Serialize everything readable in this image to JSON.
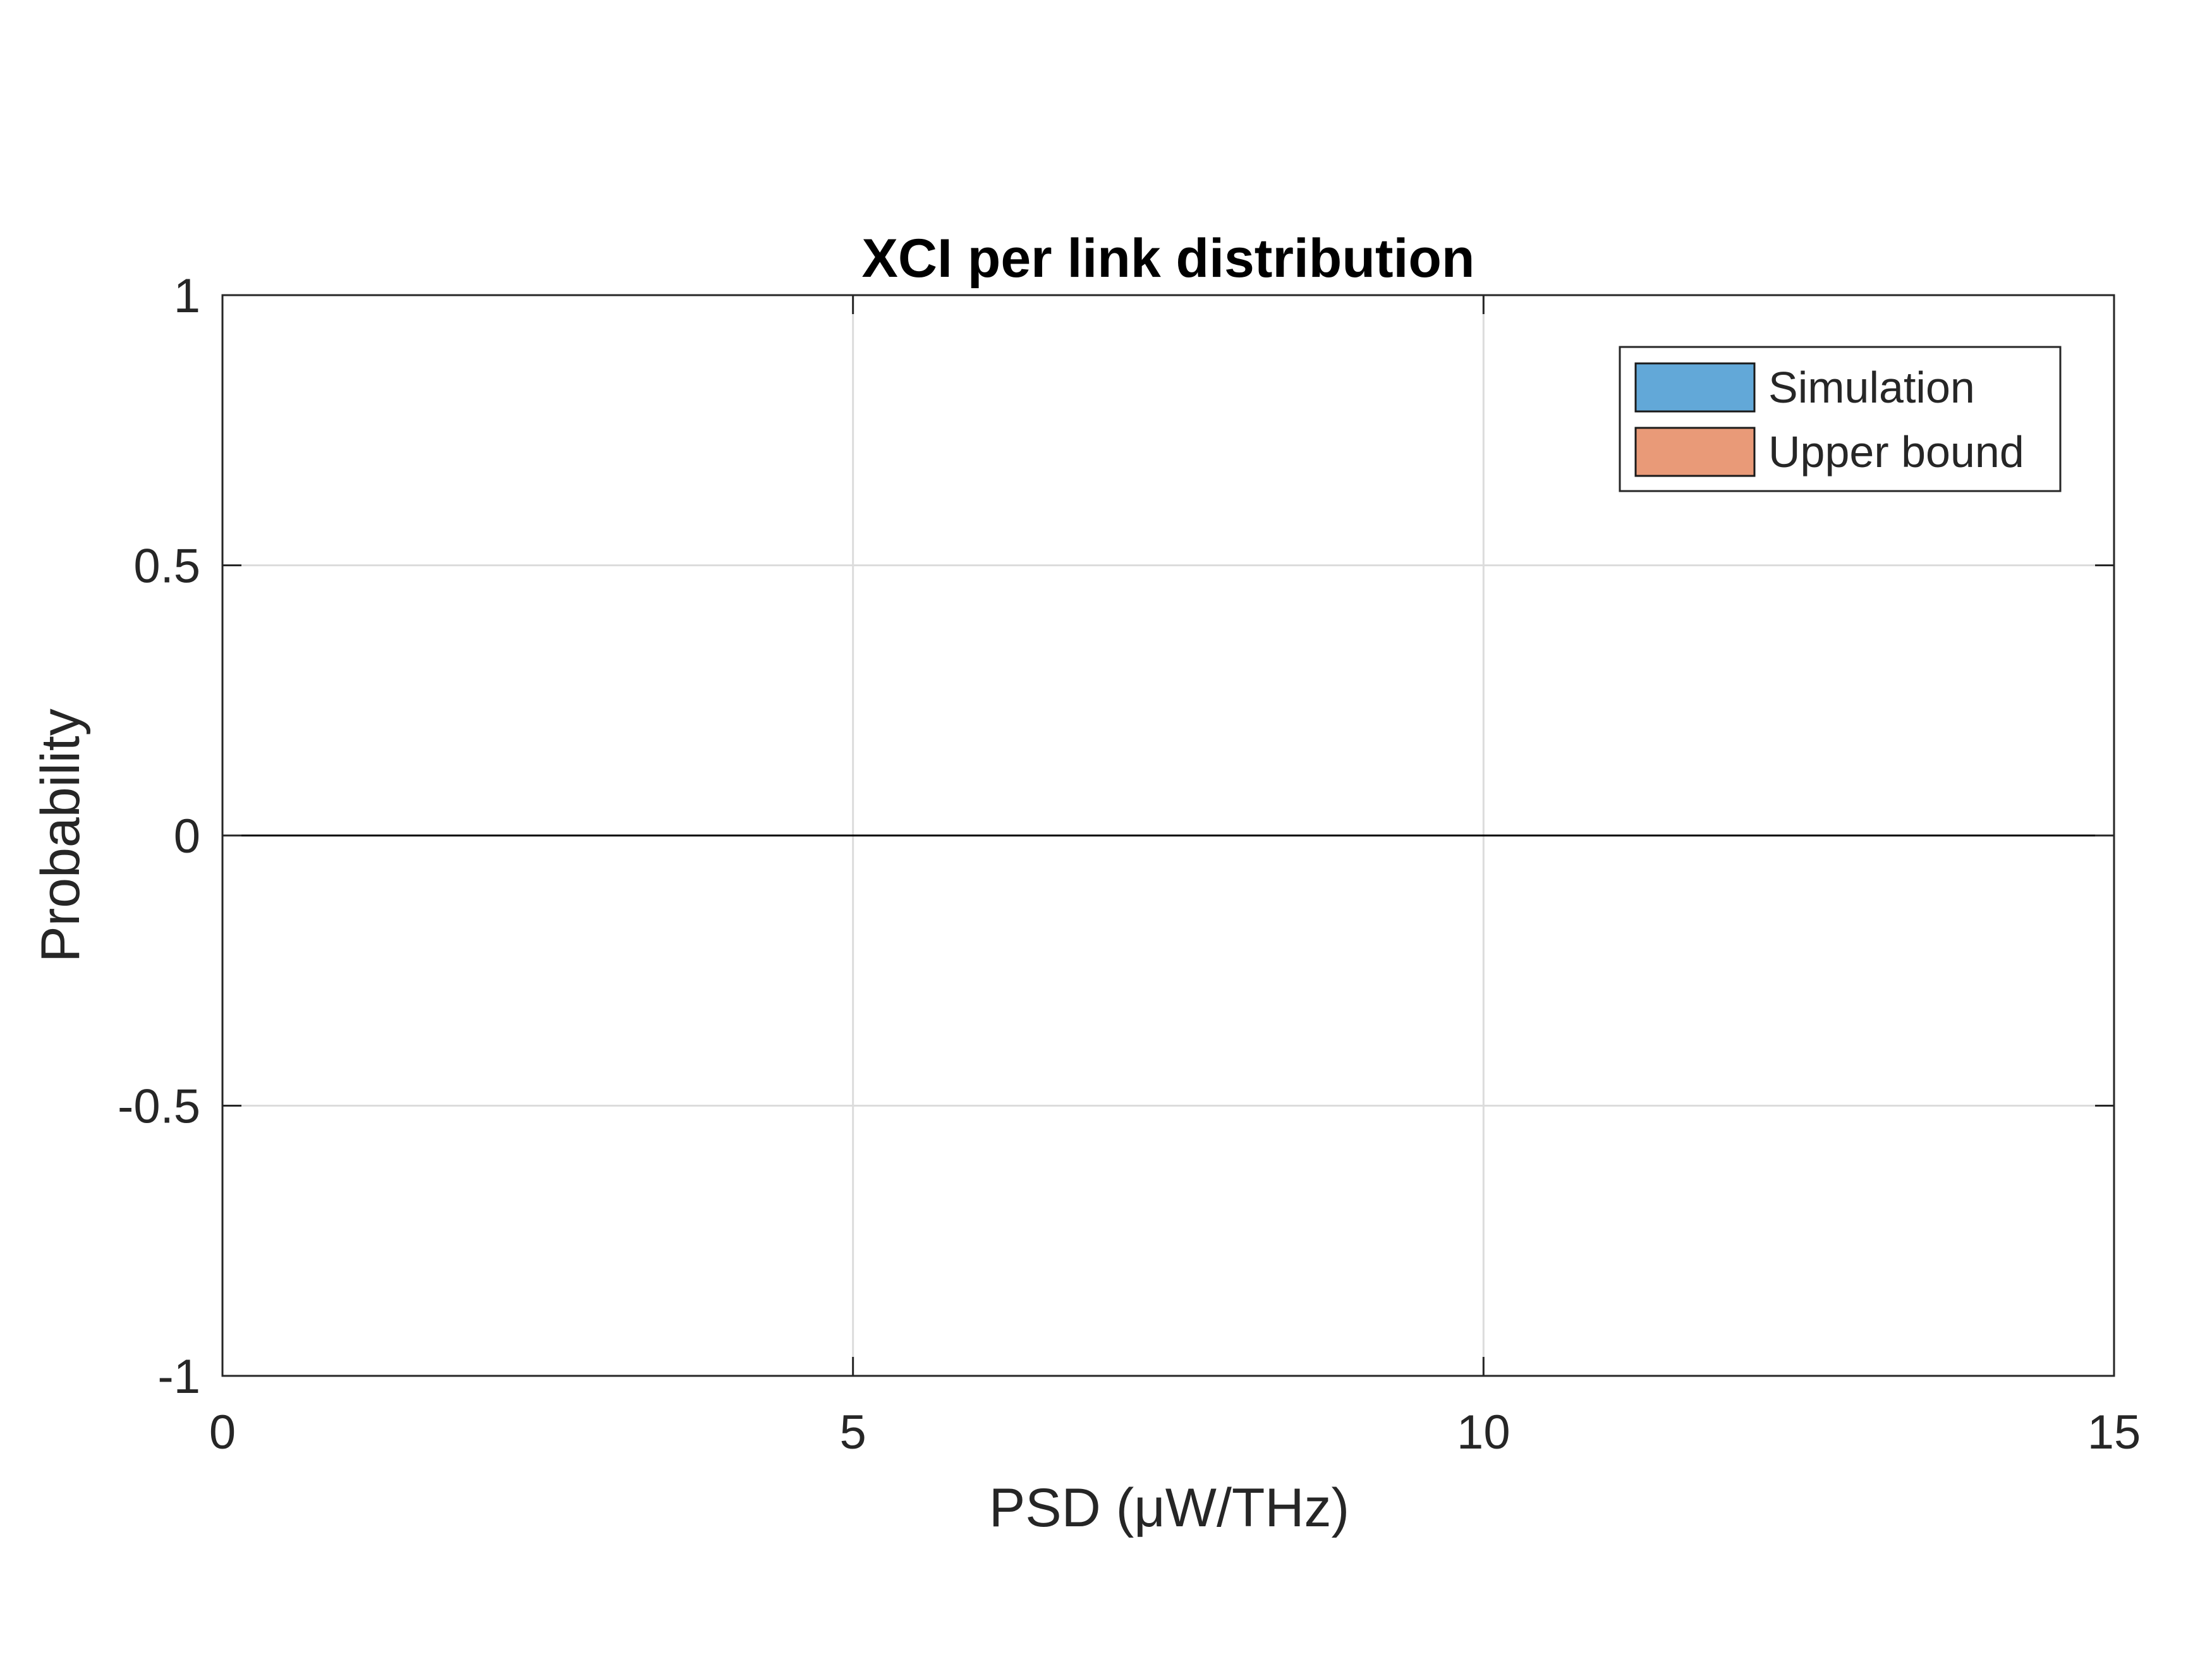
{
  "chart_data": {
    "type": "bar",
    "title": "XCI per link distribution",
    "xlabel": "PSD (μW/THz)",
    "ylabel": "Probability",
    "xlim": [
      0,
      15
    ],
    "ylim": [
      -1,
      1
    ],
    "xticks": [
      0,
      5,
      10,
      15
    ],
    "xtick_labels": [
      "0",
      "5",
      "10",
      "15"
    ],
    "yticks": [
      -1,
      -0.5,
      0,
      0.5,
      1
    ],
    "ytick_labels": [
      "-1",
      "-0.5",
      "0",
      "0.5",
      "1"
    ],
    "grid": true,
    "legend_position": "top-right",
    "baseline": 0,
    "series": [
      {
        "name": "Simulation",
        "color": "#62a8d8",
        "values": []
      },
      {
        "name": "Upper bound",
        "color": "#e99a78",
        "values": []
      }
    ]
  }
}
